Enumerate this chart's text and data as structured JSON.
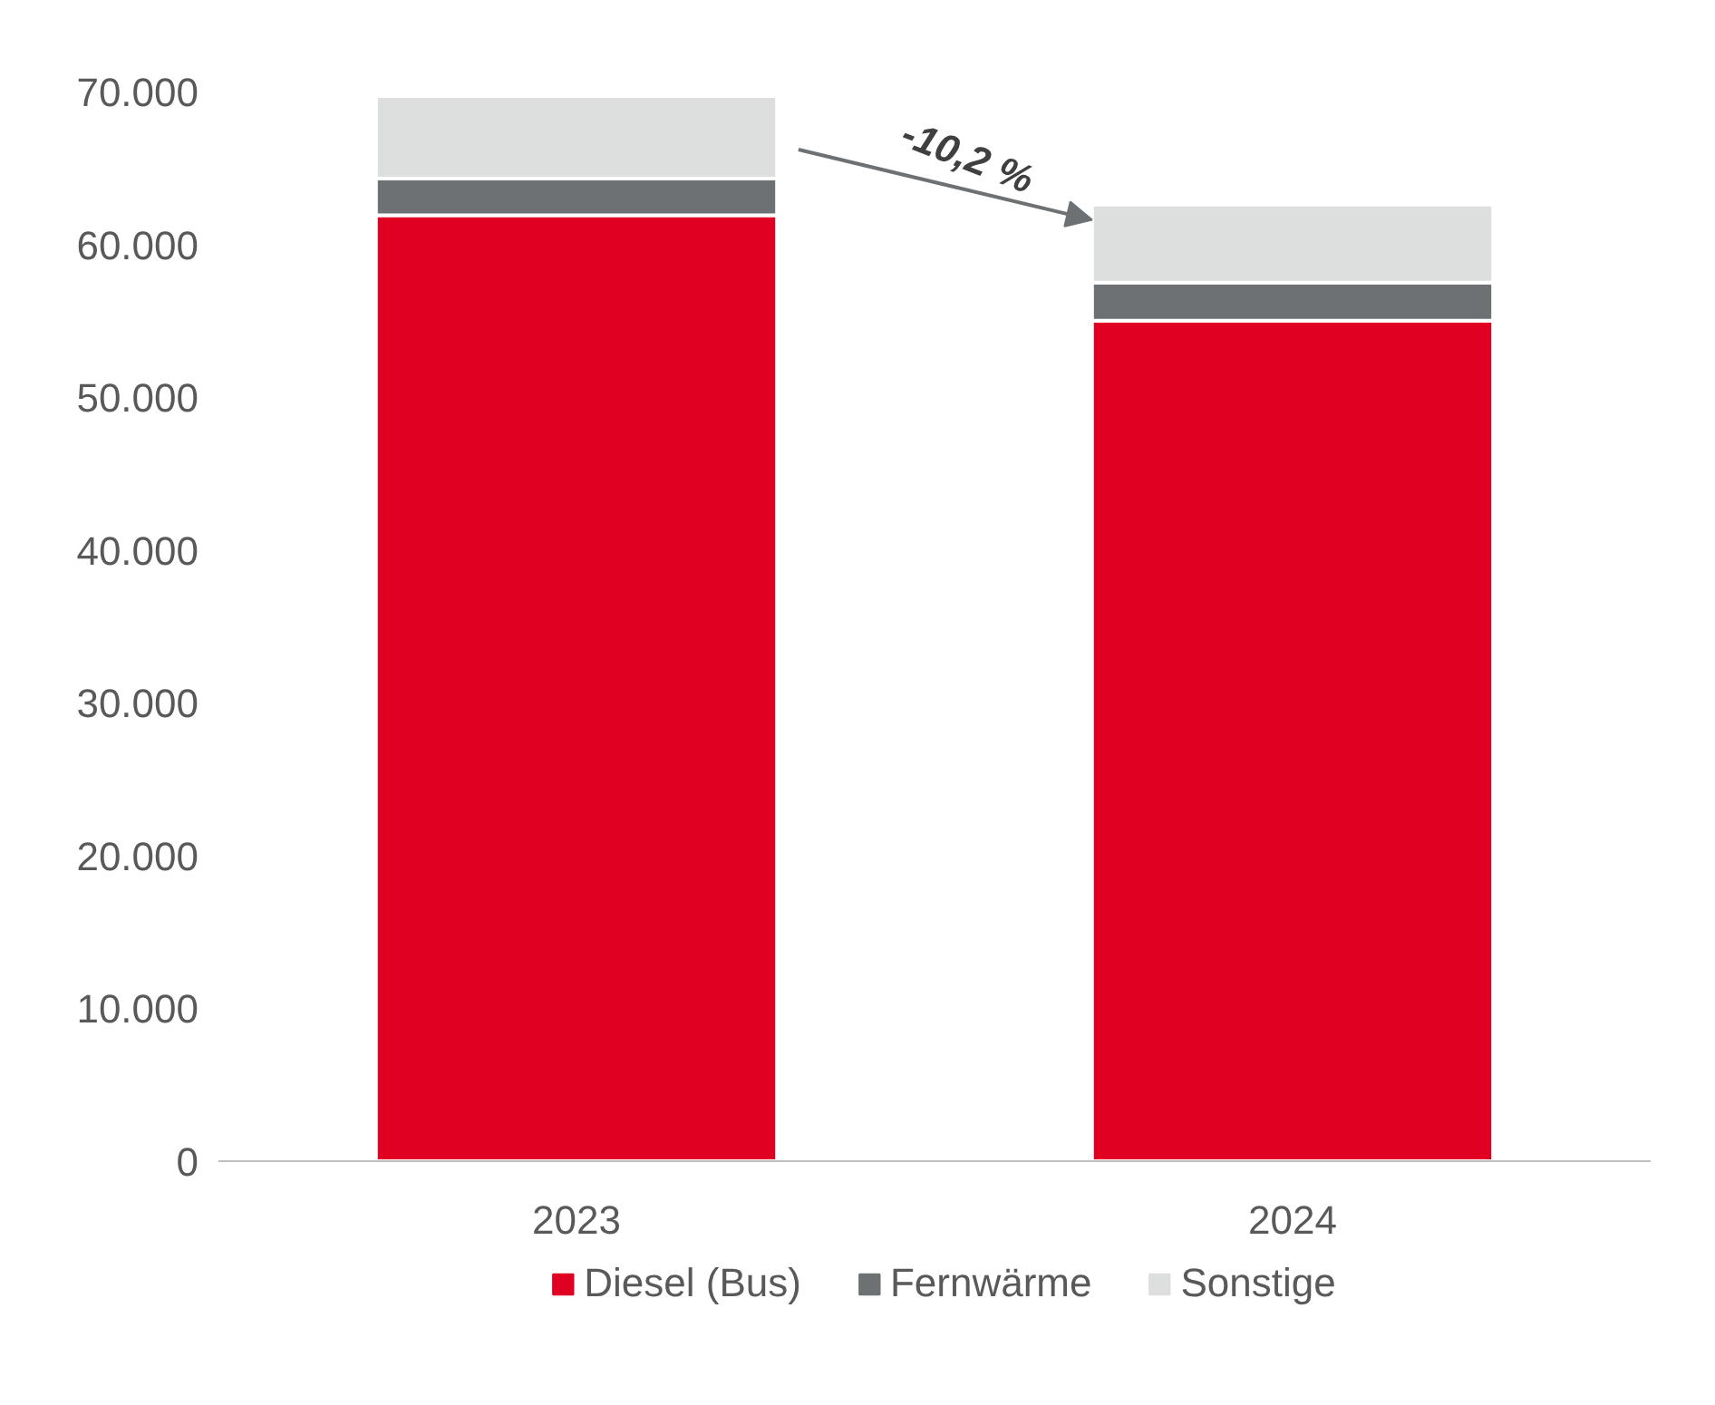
{
  "chart_data": {
    "type": "bar",
    "stacked": true,
    "categories": [
      "2023",
      "2024"
    ],
    "series": [
      {
        "name": "Diesel (Bus)",
        "color": "#e00022",
        "values": [
          61900,
          55000
        ]
      },
      {
        "name": "Fernwärme",
        "color": "#6d7173",
        "values": [
          2400,
          2500
        ]
      },
      {
        "name": "Sonstige",
        "color": "#dddfdf",
        "values": [
          5400,
          5100
        ]
      }
    ],
    "ylim": [
      0,
      70000
    ],
    "yticks": [
      0,
      {
        "value": 10000,
        "label": "10.000"
      },
      {
        "value": 20000,
        "label": "20.000"
      },
      {
        "value": 30000,
        "label": "30.000"
      },
      {
        "value": 40000,
        "label": "40.000"
      },
      {
        "value": 50000,
        "label": "50.000"
      },
      {
        "value": 60000,
        "label": "60.000"
      },
      {
        "value": 70000,
        "label": "70.000"
      }
    ],
    "annotations": [
      "-10,2 %"
    ],
    "legend": "bottom",
    "grid": false
  }
}
